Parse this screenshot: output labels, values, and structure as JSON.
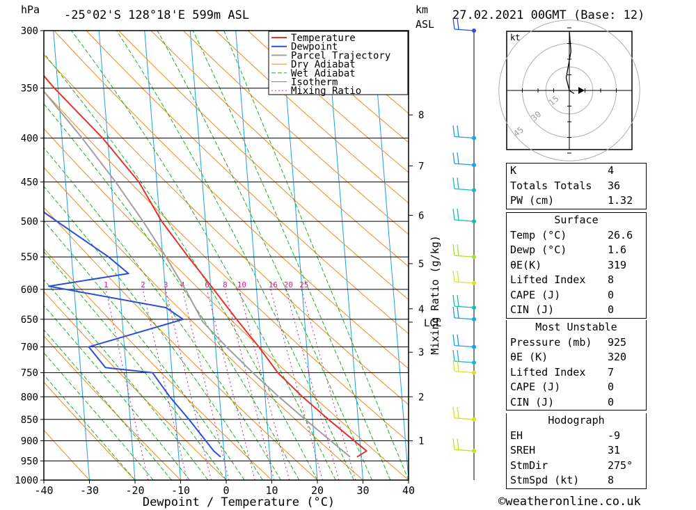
{
  "header": {
    "unit_left": "hPa",
    "location": "-25°02'S 128°18'E 599m ASL",
    "unit_km": "km",
    "unit_asl": "ASL",
    "datetime": "27.02.2021 00GMT (Base: 12)"
  },
  "chart_data": {
    "type": "line",
    "xlabel": "Dewpoint / Temperature (°C)",
    "ylabel": "hPa",
    "xlim": [
      -40,
      40
    ],
    "ylim": [
      1000,
      300
    ],
    "skew_per_decade_log_p": 99,
    "x_ticks": [
      "-40",
      "-30",
      "-20",
      "-10",
      "0",
      "10",
      "20",
      "30",
      "40"
    ],
    "pressure_levels": [
      300,
      350,
      400,
      450,
      500,
      550,
      600,
      650,
      700,
      750,
      800,
      850,
      900,
      950,
      1000
    ],
    "km_ticks": [
      {
        "label": "1",
        "p": 900
      },
      {
        "label": "2",
        "p": 800
      },
      {
        "label": "3",
        "p": 710
      },
      {
        "label": "4",
        "p": 632
      },
      {
        "label": "5",
        "p": 560
      },
      {
        "label": "6",
        "p": 492
      },
      {
        "label": "7",
        "p": 431
      },
      {
        "label": "8",
        "p": 376
      }
    ],
    "lcl_label": "LCL",
    "lcl_p": 655,
    "mixing_ratio_axis_label": "Mixing Ratio (g/kg)",
    "mixing_ratio_labels": [
      "1",
      "2",
      "3",
      "4",
      "6",
      "8",
      "10",
      "16",
      "20",
      "25"
    ],
    "mixing_ratio_values": [
      1,
      2,
      3,
      4,
      6,
      8,
      10,
      16,
      20,
      25
    ],
    "legend": [
      "Temperature",
      "Dewpoint",
      "Parcel Trajectory",
      "Dry Adiabat",
      "Wet Adiabat",
      "Isotherm",
      "Mixing Ratio"
    ],
    "colors": {
      "temperature": "#e8302a",
      "dewpoint": "#2a4fd8",
      "parcel": "#a0a0a0",
      "dry_adiabat": "#f08a1c",
      "wet_adiabat": "#1fb01f",
      "isotherm": "#1aa0e8",
      "mixing_ratio": "#d0208a"
    },
    "series": [
      {
        "name": "Temperature",
        "points": [
          {
            "p": 940,
            "t": 29.1
          },
          {
            "p": 925,
            "t": 31.3
          },
          {
            "p": 850,
            "t": 23.5
          },
          {
            "p": 800,
            "t": 18.2
          },
          {
            "p": 750,
            "t": 13.2
          },
          {
            "p": 700,
            "t": 9.5
          },
          {
            "p": 650,
            "t": 5.1
          },
          {
            "p": 600,
            "t": 0.6
          },
          {
            "p": 550,
            "t": -4.4
          },
          {
            "p": 500,
            "t": -9.6
          },
          {
            "p": 450,
            "t": -13.9
          },
          {
            "p": 400,
            "t": -21.1
          },
          {
            "p": 350,
            "t": -30.8
          },
          {
            "p": 300,
            "t": -40.6
          }
        ]
      },
      {
        "name": "Dewpoint",
        "points": [
          {
            "p": 940,
            "t": -0.8
          },
          {
            "p": 925,
            "t": -2.2
          },
          {
            "p": 850,
            "t": -7.1
          },
          {
            "p": 800,
            "t": -10.9
          },
          {
            "p": 750,
            "t": -14.3
          },
          {
            "p": 740,
            "t": -24.5
          },
          {
            "p": 700,
            "t": -27.8
          },
          {
            "p": 650,
            "t": -6.6
          },
          {
            "p": 630,
            "t": -10.2
          },
          {
            "p": 595,
            "t": -35.5
          },
          {
            "p": 575,
            "t": -17.8
          },
          {
            "p": 550,
            "t": -21.9
          },
          {
            "p": 500,
            "t": -32.6
          },
          {
            "p": 450,
            "t": -44.2
          },
          {
            "p": 410,
            "t": -59.9
          },
          {
            "p": 400,
            "t": -57.3
          },
          {
            "p": 350,
            "t": -55.8
          },
          {
            "p": 330,
            "t": -43.8
          },
          {
            "p": 320,
            "t": -51.5
          },
          {
            "p": 300,
            "t": -54.3
          }
        ]
      },
      {
        "name": "Parcel Trajectory",
        "points": [
          {
            "p": 940,
            "t": 27.6
          },
          {
            "p": 900,
            "t": 23.6
          },
          {
            "p": 850,
            "t": 18.4
          },
          {
            "p": 800,
            "t": 13.0
          },
          {
            "p": 750,
            "t": 7.7
          },
          {
            "p": 700,
            "t": 2.4
          },
          {
            "p": 655,
            "t": -2.3
          },
          {
            "p": 600,
            "t": -5.6
          },
          {
            "p": 550,
            "t": -9.3
          },
          {
            "p": 500,
            "t": -13.7
          },
          {
            "p": 450,
            "t": -19.0
          },
          {
            "p": 400,
            "t": -25.6
          },
          {
            "p": 350,
            "t": -33.7
          },
          {
            "p": 300,
            "t": -43.2
          }
        ]
      }
    ]
  },
  "wind_profile": {
    "colors": [
      "#2a4fd8",
      "#1aa0e8",
      "#1aa0e8",
      "#19b8c8",
      "#19b8b0",
      "#a8e030",
      "#e0e030",
      "#19b8b0",
      "#1aa0e8",
      "#1aa0e8",
      "#19b8c8",
      "#e0e030",
      "#d8e020",
      "#c8e020"
    ],
    "levels_p": [
      300,
      400,
      430,
      460,
      500,
      550,
      590,
      630,
      650,
      700,
      730,
      750,
      850,
      925
    ]
  },
  "hodograph": {
    "unit": "kt",
    "ring_labels": [
      "15",
      "30",
      "45"
    ],
    "trace_kt": [
      [
        3,
        -2
      ],
      [
        0,
        0
      ],
      [
        -2,
        8
      ],
      [
        1,
        25
      ],
      [
        0,
        38
      ]
    ],
    "storm_motion_kt": [
      8,
      0
    ]
  },
  "indices": {
    "k_label": "K",
    "k_value": "4",
    "tt_label": "Totals Totals",
    "tt_value": "36",
    "pw_label": "PW (cm)",
    "pw_value": "1.32"
  },
  "surface": {
    "title": "Surface",
    "temp_label": "Temp (°C)",
    "temp_value": "26.6",
    "dewp_label": "Dewp (°C)",
    "dewp_value": "1.6",
    "theta_label": "θE(K)",
    "theta_value": "319",
    "li_label": "Lifted Index",
    "li_value": "8",
    "cape_label": "CAPE (J)",
    "cape_value": "0",
    "cin_label": "CIN (J)",
    "cin_value": "0"
  },
  "most_unstable": {
    "title": "Most Unstable",
    "pres_label": "Pressure (mb)",
    "pres_value": "925",
    "theta_label": "θE (K)",
    "theta_value": "320",
    "li_label": "Lifted Index",
    "li_value": "7",
    "cape_label": "CAPE (J)",
    "cape_value": "0",
    "cin_label": "CIN (J)",
    "cin_value": "0"
  },
  "hodograph_table": {
    "title": "Hodograph",
    "eh_label": "EH",
    "eh_value": "-9",
    "sreh_label": "SREH",
    "sreh_value": "31",
    "stmdir_label": "StmDir",
    "stmdir_value": "275°",
    "stmspd_label": "StmSpd (kt)",
    "stmspd_value": "8"
  },
  "footer": {
    "copyright": "©weatheronline.co.uk"
  }
}
